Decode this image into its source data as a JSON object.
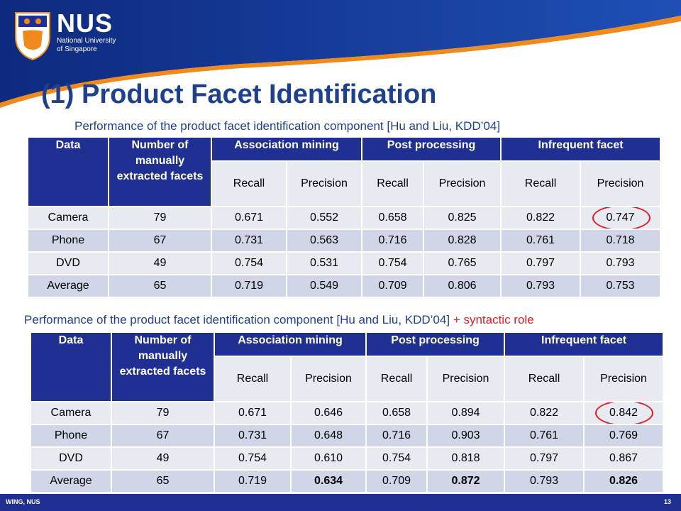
{
  "header": {
    "logo_name": "NUS",
    "logo_line1": "National University",
    "logo_line2": "of Singapore"
  },
  "title": "(1) Product Facet Identification",
  "caption1": "Performance of the product facet identification component [Hu and Liu, KDD’04]",
  "caption2": {
    "text": "Performance of the product facet identification component [Hu and Liu, KDD’04]",
    "extra": " + syntactic role"
  },
  "columns": {
    "data": "Data",
    "facets": "Number of manually extracted facets",
    "groups": [
      "Association mining",
      "Post processing",
      "Infrequent facet"
    ],
    "sub": [
      "Recall",
      "Precision",
      "Recall",
      "Precision",
      "Recall",
      "Precision"
    ]
  },
  "table1": {
    "rows": [
      [
        "Camera",
        "79",
        "0.671",
        "0.552",
        "0.658",
        "0.825",
        "0.822",
        "0.747"
      ],
      [
        "Phone",
        "67",
        "0.731",
        "0.563",
        "0.716",
        "0.828",
        "0.761",
        "0.718"
      ],
      [
        "DVD",
        "49",
        "0.754",
        "0.531",
        "0.754",
        "0.765",
        "0.797",
        "0.793"
      ],
      [
        "Average",
        "65",
        "0.719",
        "0.549",
        "0.709",
        "0.806",
        "0.793",
        "0.753"
      ]
    ]
  },
  "table2": {
    "rows": [
      [
        "Camera",
        "79",
        "0.671",
        "0.646",
        "0.658",
        "0.894",
        "0.822",
        "0.842"
      ],
      [
        "Phone",
        "67",
        "0.731",
        "0.648",
        "0.716",
        "0.903",
        "0.761",
        "0.769"
      ],
      [
        "DVD",
        "49",
        "0.754",
        "0.610",
        "0.754",
        "0.818",
        "0.797",
        "0.867"
      ],
      [
        "Average",
        "65",
        "0.719",
        "0.634",
        "0.709",
        "0.872",
        "0.793",
        "0.826"
      ]
    ]
  },
  "footer": {
    "left": "WING, NUS",
    "right": "13"
  },
  "colors": {
    "brand_blue": "#1f2f92",
    "accent_orange": "#f08a1c",
    "highlight_red": "#e31b23"
  }
}
